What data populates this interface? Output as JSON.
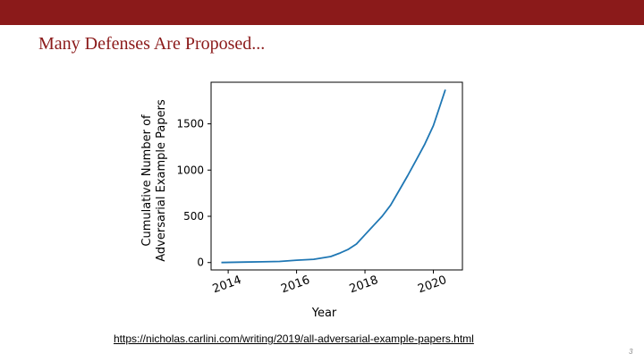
{
  "slide": {
    "title": "Many Defenses Are Proposed...",
    "source_link": "https://nicholas.carlini.com/writing/2019/all-adversarial-example-papers.html",
    "page_number": "3"
  },
  "colors": {
    "accent": "#8b1a1a",
    "line": "#1f77b4"
  },
  "chart_data": {
    "type": "line",
    "title": "",
    "xlabel": "Year",
    "ylabel": "Cumulative Number of\nAdversarial Example Papers",
    "xlim": [
      2013.5,
      2020.85
    ],
    "ylim": [
      -80,
      1950
    ],
    "xticks": [
      2014,
      2016,
      2018,
      2020
    ],
    "yticks": [
      0,
      500,
      1000,
      1500
    ],
    "grid": false,
    "series": [
      {
        "x": [
          2013.8,
          2014.5,
          2015.0,
          2015.5,
          2016.0,
          2016.5,
          2017.0,
          2017.25,
          2017.5,
          2017.75,
          2018.0,
          2018.25,
          2018.5,
          2018.75,
          2019.0,
          2019.25,
          2019.5,
          2019.75,
          2020.0,
          2020.2,
          2020.35
        ],
        "y": [
          0,
          5,
          8,
          12,
          25,
          35,
          65,
          100,
          140,
          200,
          300,
          400,
          500,
          620,
          780,
          940,
          1110,
          1280,
          1480,
          1700,
          1870
        ]
      }
    ]
  }
}
